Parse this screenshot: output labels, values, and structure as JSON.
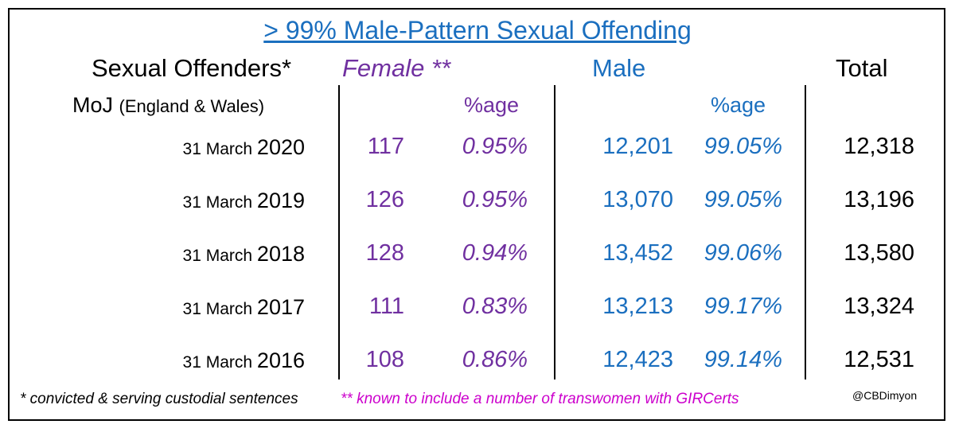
{
  "chart_data": {
    "type": "table",
    "title": "> 99% Male-Pattern Sexual Offending",
    "header": {
      "row_label": "Sexual Offenders*",
      "female": "Female **",
      "male": "Male",
      "total": "Total"
    },
    "subheader": {
      "source": "MoJ",
      "region": "(England & Wales)",
      "female_pct": "%age",
      "male_pct": "%age"
    },
    "rows": [
      {
        "date": "31 March",
        "year": "2020",
        "female": "117",
        "female_pct": "0.95%",
        "male": "12,201",
        "male_pct": "99.05%",
        "total": "12,318"
      },
      {
        "date": "31 March",
        "year": "2019",
        "female": "126",
        "female_pct": "0.95%",
        "male": "13,070",
        "male_pct": "99.05%",
        "total": "13,196"
      },
      {
        "date": "31 March",
        "year": "2018",
        "female": "128",
        "female_pct": "0.94%",
        "male": "13,452",
        "male_pct": "99.06%",
        "total": "13,580"
      },
      {
        "date": "31 March",
        "year": "2017",
        "female": "111",
        "female_pct": "0.83%",
        "male": "13,213",
        "male_pct": "99.17%",
        "total": "13,324"
      },
      {
        "date": "31 March",
        "year": "2016",
        "female": "108",
        "female_pct": "0.86%",
        "male": "12,423",
        "male_pct": "99.14%",
        "total": "12,531"
      }
    ],
    "footnotes": {
      "star": "* convicted & serving custodial sentences",
      "double_star": "** known to include a number of transwomen with GIRCerts"
    },
    "credit": "@CBDimyon"
  },
  "colors": {
    "female": "#7030a0",
    "male": "#1b6fbf",
    "footnote_double_star": "#cc00cc",
    "text": "#000000"
  }
}
